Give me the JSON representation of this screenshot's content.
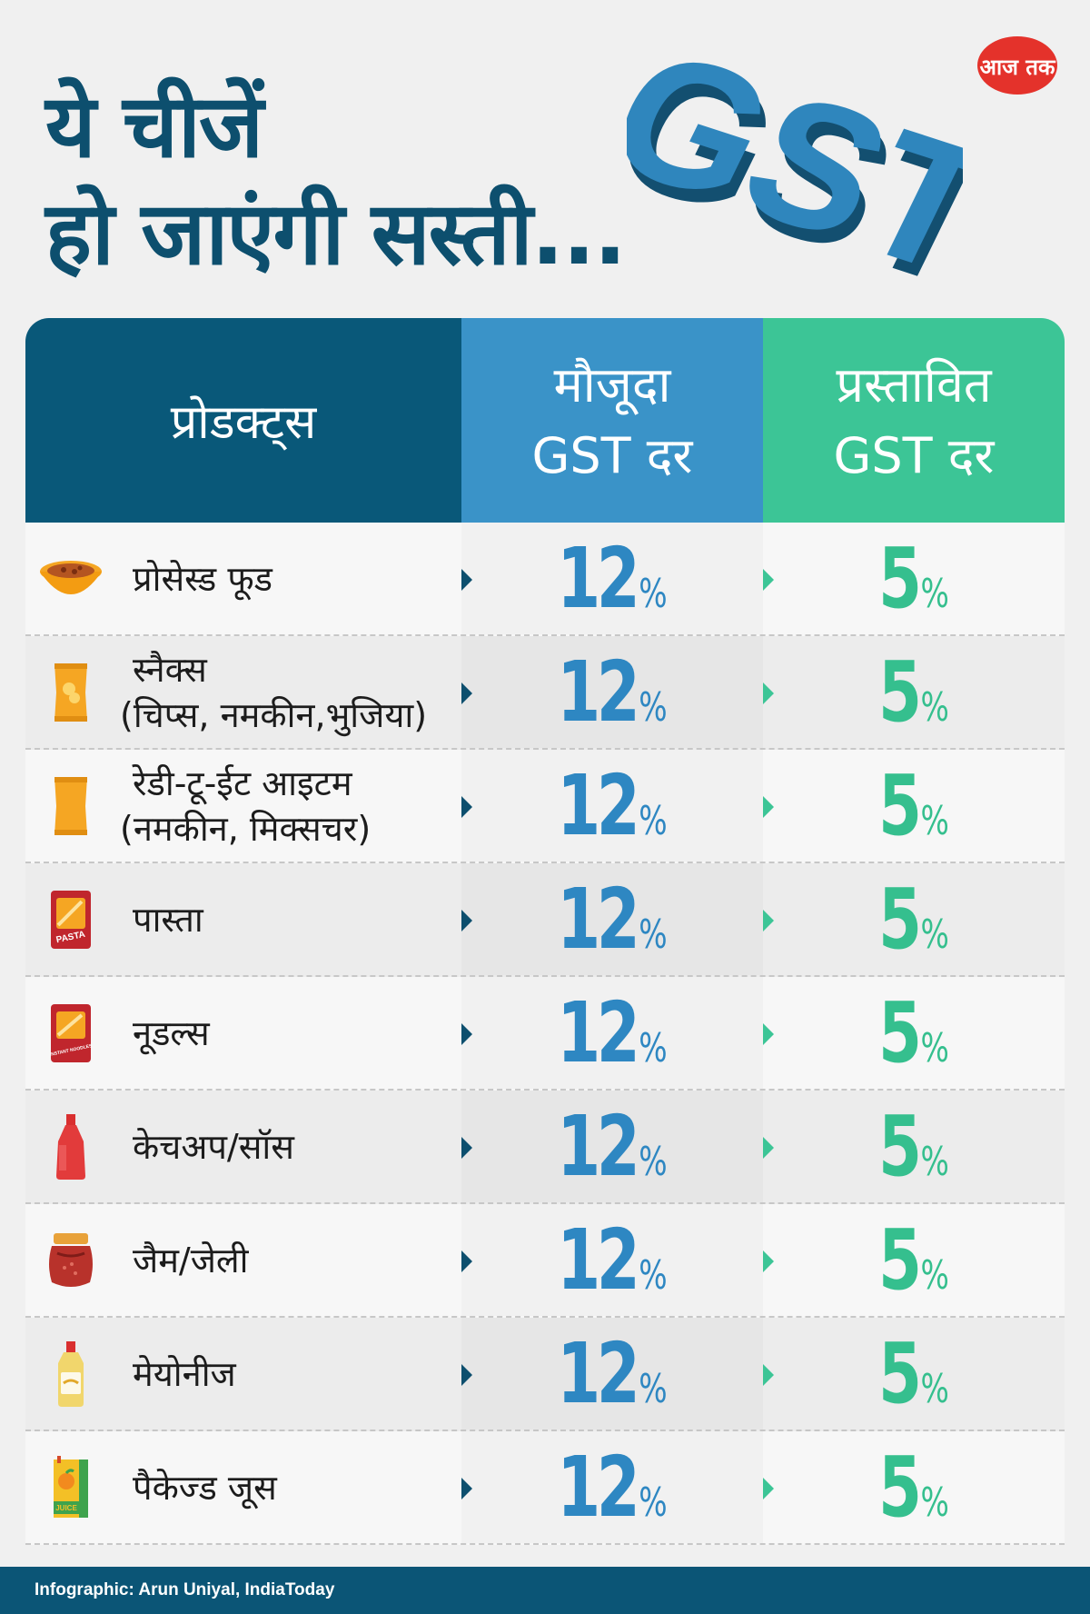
{
  "header": {
    "title_line1": "ये चीजें",
    "title_line2": "हो जाएंगी सस्ती...",
    "gst_art_text": "GST",
    "logo_text": "आज तक"
  },
  "table": {
    "col_product": "प्रोडक्ट्स",
    "col_current_line1": "मौजूदा",
    "col_current_line2": "GST दर",
    "col_proposed_line1": "प्रस्तावित",
    "col_proposed_line2": "GST दर",
    "rows": [
      {
        "icon": "noodle-bowl-icon",
        "line1": "प्रोसेस्ड फूड",
        "line2": "",
        "current": "12",
        "proposed": "5"
      },
      {
        "icon": "chips-packet-icon",
        "line1": "स्नैक्स",
        "line2": "(चिप्स, नमकीन,भुजिया)",
        "current": "12",
        "proposed": "5"
      },
      {
        "icon": "snack-packet-icon",
        "line1": "रेडी-टू-ईट आइटम",
        "line2": "(नमकीन, मिक्सचर)",
        "current": "12",
        "proposed": "5"
      },
      {
        "icon": "pasta-packet-icon",
        "line1": "पास्ता",
        "line2": "",
        "current": "12",
        "proposed": "5"
      },
      {
        "icon": "noodles-packet-icon",
        "line1": "नूडल्स",
        "line2": "",
        "current": "12",
        "proposed": "5"
      },
      {
        "icon": "ketchup-bottle-icon",
        "line1": "केचअप/सॉस",
        "line2": "",
        "current": "12",
        "proposed": "5"
      },
      {
        "icon": "jam-jar-icon",
        "line1": "जैम/जेली",
        "line2": "",
        "current": "12",
        "proposed": "5"
      },
      {
        "icon": "mayonnaise-bottle-icon",
        "line1": "मेयोनीज",
        "line2": "",
        "current": "12",
        "proposed": "5"
      },
      {
        "icon": "juice-carton-icon",
        "line1": "पैकेज्ड जूस",
        "line2": "",
        "current": "12",
        "proposed": "5"
      }
    ],
    "percent_sign": "%",
    "pasta_pack_label": "PASTA",
    "noodles_pack_label": "INSTANT NOODLES",
    "juice_pack_label": "JUICE"
  },
  "footer": {
    "credit": "Infographic: Arun Uniyal, IndiaToday"
  },
  "colors": {
    "title": "#0d4f6e",
    "header_product": "#095879",
    "header_current": "#3a93c8",
    "header_proposed": "#3cc596",
    "current_rate": "#2e87c2",
    "proposed_rate": "#35bf8e",
    "footer_bg": "#0b5576"
  }
}
